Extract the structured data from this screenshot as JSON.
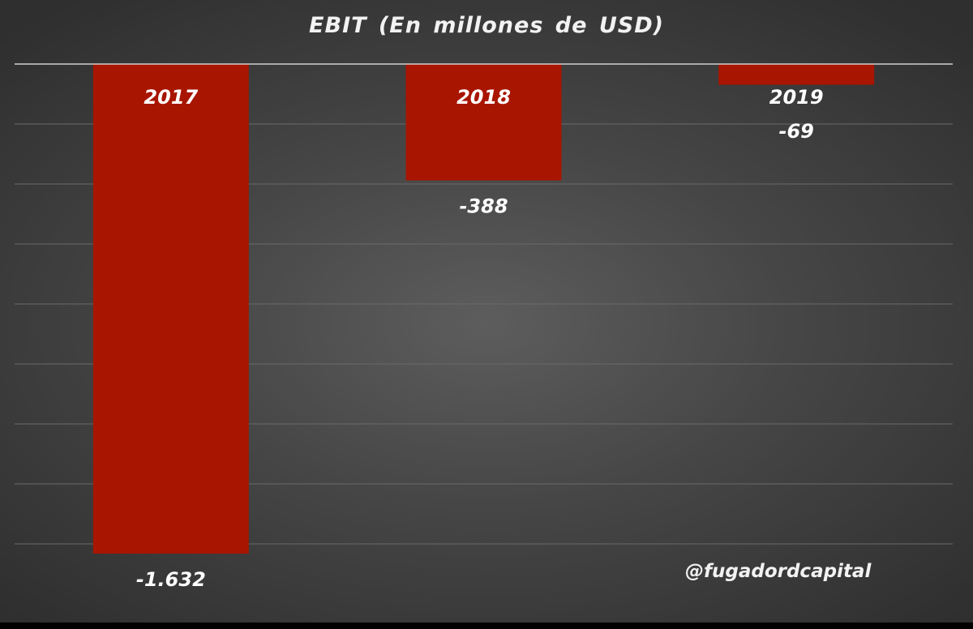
{
  "watermark": "@fugadordcapital",
  "chart_data": {
    "type": "bar",
    "title": "EBIT (En millones  de USD)",
    "categories": [
      "2017",
      "2018",
      "2019"
    ],
    "values": [
      -1632,
      -388,
      -69
    ],
    "value_labels": [
      "-1.632",
      "-388",
      "-69"
    ],
    "ylim": [
      -1632,
      0
    ],
    "grid": true,
    "legend": "none",
    "colors": {
      "bar": "#a81500",
      "grid": "#6a6a6a",
      "axis": "#d0d0d0",
      "text": "#ffffff"
    }
  }
}
